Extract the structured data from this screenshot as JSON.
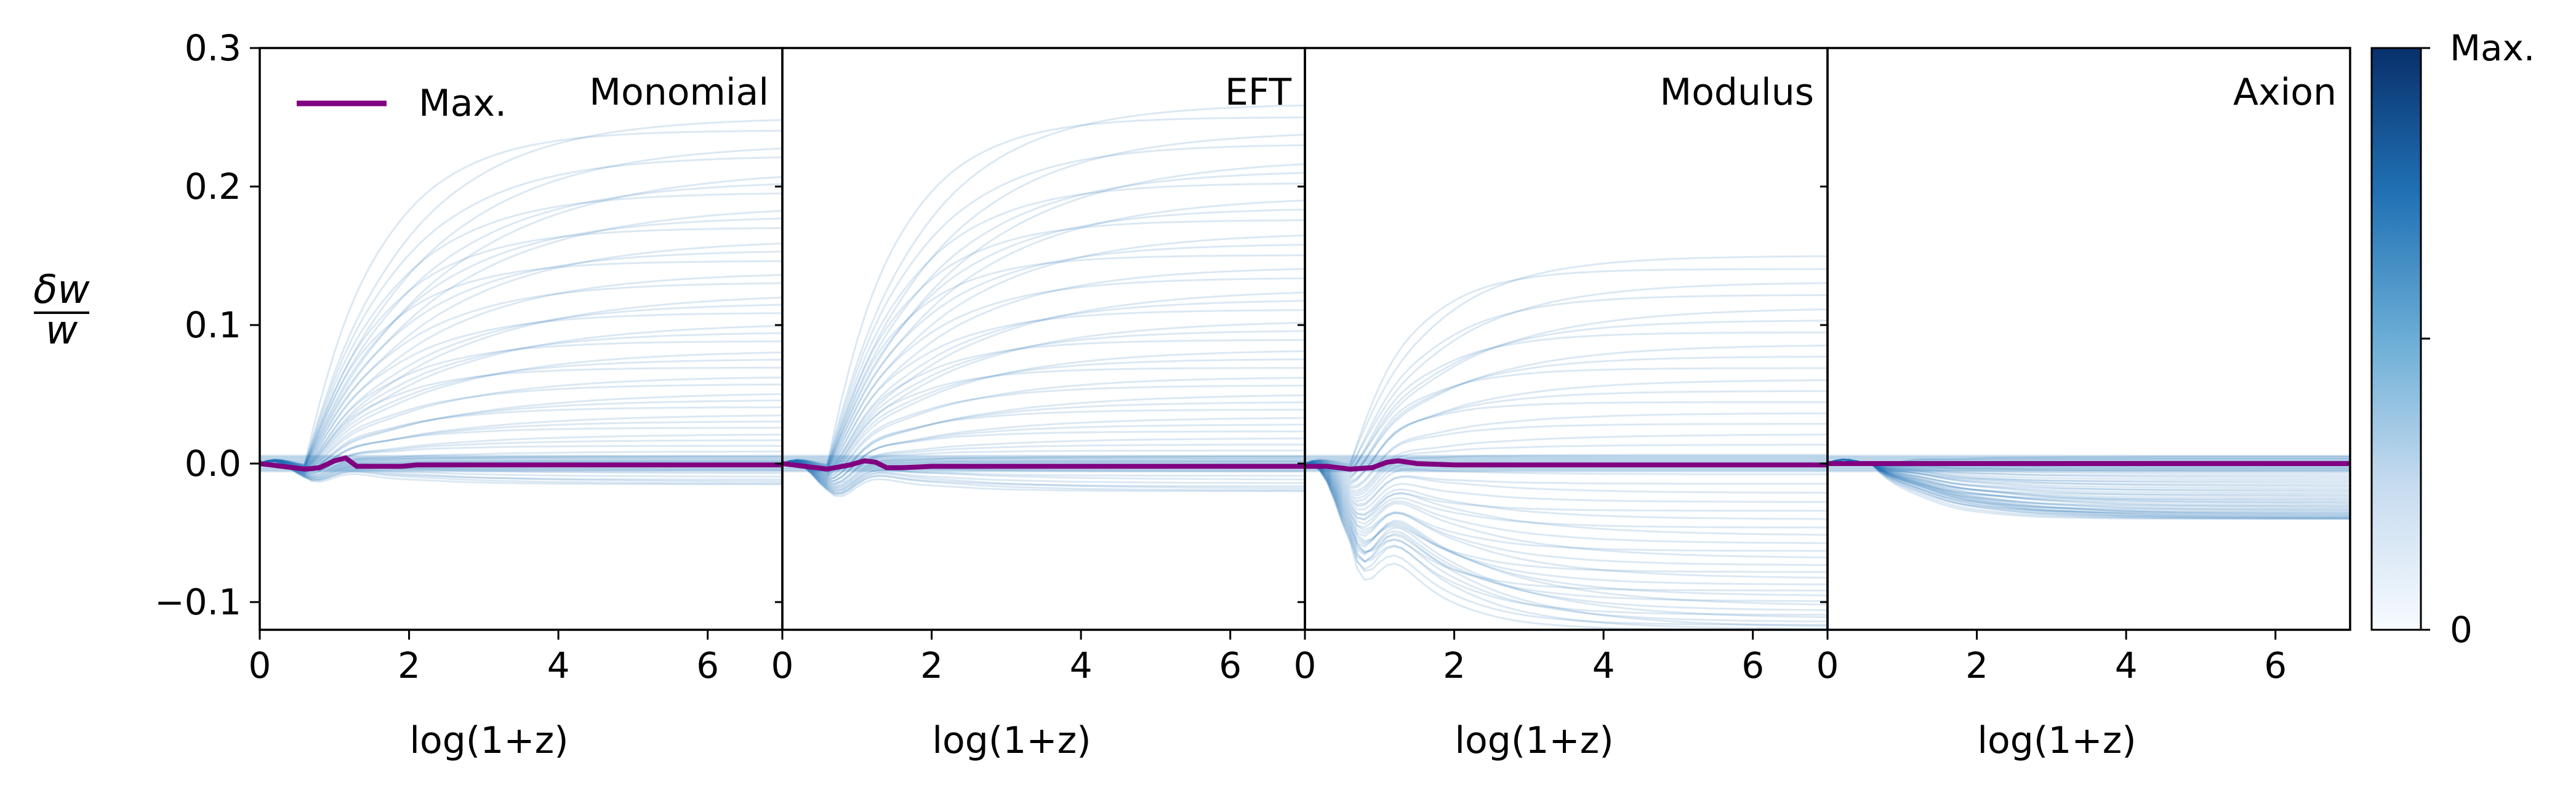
{
  "chart_data": {
    "type": "line",
    "ylabel_numerator": "δw",
    "ylabel_denominator": "w",
    "xlabel": "log(1+z)",
    "xlim": [
      0,
      7
    ],
    "ylim": [
      -0.12,
      0.3
    ],
    "x_ticks": [
      0,
      2,
      4,
      6
    ],
    "y_ticks": [
      -0.1,
      0.0,
      0.1,
      0.2,
      0.3
    ],
    "y_tick_labels": [
      "−0.1",
      "0.0",
      "0.1",
      "0.2",
      "0.3"
    ],
    "legend": {
      "label": "Max.",
      "color": "#800080",
      "placement": "upper-left"
    },
    "colorbar": {
      "label_top": "Max.",
      "label_bottom": "0",
      "cmap": "Blues"
    },
    "colors": {
      "highlight": "#800080",
      "band": "#2171b5"
    },
    "panels": [
      {
        "title": "Monomial",
        "band": {
          "upper_max": 0.25,
          "lower_min": -0.015,
          "rise": 1.4,
          "dip": -0.01
        },
        "max_curve": {
          "x": [
            0,
            0.3,
            0.6,
            0.8,
            1.0,
            1.15,
            1.3,
            1.6,
            1.9,
            2.1,
            3,
            4,
            5,
            6,
            7
          ],
          "y": [
            0.0,
            -0.002,
            -0.004,
            -0.003,
            0.002,
            0.004,
            -0.002,
            -0.002,
            -0.002,
            -0.001,
            -0.001,
            -0.001,
            -0.001,
            -0.001,
            -0.001
          ]
        }
      },
      {
        "title": "EFT",
        "band": {
          "upper_max": 0.26,
          "lower_min": -0.02,
          "rise": 1.3,
          "dip": -0.02
        },
        "max_curve": {
          "x": [
            0,
            0.3,
            0.6,
            0.9,
            1.1,
            1.25,
            1.4,
            1.6,
            2.0,
            3,
            4,
            5,
            6,
            7
          ],
          "y": [
            0.0,
            -0.002,
            -0.004,
            -0.001,
            0.002,
            0.001,
            -0.003,
            -0.003,
            -0.002,
            -0.002,
            -0.002,
            -0.002,
            -0.002,
            -0.002
          ]
        }
      },
      {
        "title": "Modulus",
        "band": {
          "upper_max": 0.15,
          "lower_min": -0.12,
          "rise": 1.1,
          "dip": -0.06
        },
        "max_curve": {
          "x": [
            0,
            0.3,
            0.6,
            0.9,
            1.1,
            1.25,
            1.5,
            2,
            3,
            4,
            5,
            6,
            7
          ],
          "y": [
            -0.002,
            -0.002,
            -0.004,
            -0.003,
            0.001,
            0.002,
            0.0,
            -0.001,
            -0.001,
            -0.001,
            -0.001,
            -0.001,
            -0.001
          ]
        }
      },
      {
        "title": "Axion",
        "band": {
          "upper_max": 0.005,
          "lower_min": -0.04,
          "rise": 1.0,
          "dip": 0.0
        },
        "max_curve": {
          "x": [
            0,
            1,
            2,
            3,
            4,
            5,
            6,
            7
          ],
          "y": [
            0.0,
            0.0,
            0.0,
            0.0,
            0.0,
            0.0,
            0.0,
            0.0
          ]
        }
      }
    ]
  }
}
